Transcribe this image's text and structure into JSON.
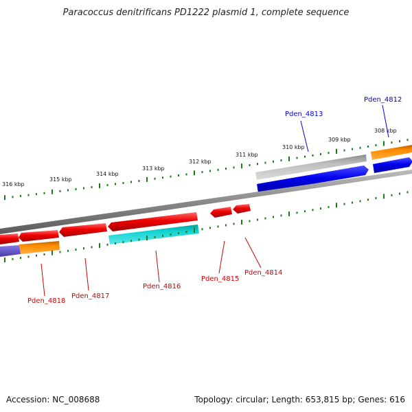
{
  "title": "Paracoccus denitrificans PD1222 plasmid 1, complete sequence",
  "footer": {
    "accession": "Accession: NC_008688",
    "summary": "Topology: circular; Length: 653,815 bp; Genes: 616"
  },
  "colors": {
    "backbone": "#8a8a8a",
    "tick": "#1a7a1a",
    "red": "#ee0000",
    "blue": "#0000ee",
    "orange": "#ff8c00",
    "gray": "#c4c4c4",
    "cyan": "#11d4d4",
    "purple": "#6a5acd",
    "label_forward": "#0000cc",
    "label_reverse": "#cc0000"
  },
  "scale": {
    "unit": "kbp",
    "tick_labels": [
      "316 kbp",
      "315 kbp",
      "314 kbp",
      "313 kbp",
      "312 kbp",
      "311 kbp",
      "310 kbp",
      "309 kbp",
      "308 kbp"
    ]
  },
  "genes": [
    {
      "id": "Pden_4813",
      "label": "Pden_4813",
      "strand": "forward"
    },
    {
      "id": "Pden_4812",
      "label": "Pden_4812",
      "strand": "forward"
    },
    {
      "id": "Pden_4818",
      "label": "Pden_4818",
      "strand": "reverse"
    },
    {
      "id": "Pden_4817",
      "label": "Pden_4817",
      "strand": "reverse"
    },
    {
      "id": "Pden_4816",
      "label": "Pden_4816",
      "strand": "reverse"
    },
    {
      "id": "Pden_4815",
      "label": "Pden_4815",
      "strand": "reverse"
    },
    {
      "id": "Pden_4814",
      "label": "Pden_4814",
      "strand": "reverse"
    }
  ]
}
